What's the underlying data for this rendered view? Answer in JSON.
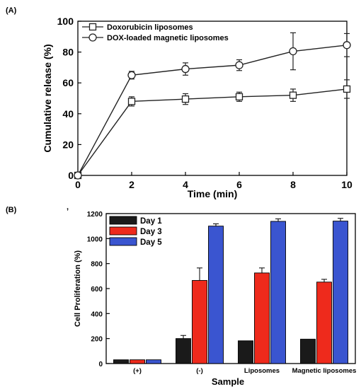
{
  "chart_data": [
    {
      "panel_label": "(A)",
      "type": "line",
      "xlabel": "Time (min)",
      "ylabel": "Cumulative release (%)",
      "xlim": [
        0,
        10
      ],
      "ylim": [
        0,
        100
      ],
      "xticks": [
        "0",
        "2",
        "4",
        "6",
        "8",
        "10"
      ],
      "yticks": [
        "0",
        "20",
        "40",
        "60",
        "80",
        "100"
      ],
      "legend_position": "top-left",
      "series": [
        {
          "name": "Doxorubicin liposomes",
          "marker": "square",
          "x": [
            0,
            2,
            4,
            6,
            8,
            10
          ],
          "y": [
            0,
            48,
            49.5,
            51,
            52,
            56
          ],
          "err": [
            0,
            3,
            3.5,
            3,
            4,
            6
          ]
        },
        {
          "name": "DOX-loaded magnetic liposomes",
          "marker": "circle",
          "x": [
            0,
            2,
            4,
            6,
            8,
            10
          ],
          "y": [
            0,
            65,
            69,
            71.5,
            80.5,
            84.5
          ],
          "err": [
            0,
            2.5,
            4,
            3.5,
            12,
            7.5
          ]
        }
      ]
    },
    {
      "panel_label": "(B)",
      "stray_mark": ",",
      "type": "bar",
      "xlabel": "Sample",
      "ylabel": "Cell Proliferation (%)",
      "ylim": [
        0,
        1200
      ],
      "yticks": [
        "0",
        "200",
        "400",
        "600",
        "800",
        "1000",
        "1200"
      ],
      "categories": [
        "(+)",
        "(-)",
        "Liposomes",
        "Magnetic liposomes"
      ],
      "legend_position": "top-left",
      "series": [
        {
          "name": "Day 1",
          "color": "#1a1a1a",
          "values": [
            30,
            200,
            182,
            195
          ],
          "err": [
            0,
            25,
            0,
            0
          ]
        },
        {
          "name": "Day 3",
          "color": "#ee2a1c",
          "values": [
            30,
            665,
            725,
            652
          ],
          "err": [
            0,
            100,
            40,
            22
          ]
        },
        {
          "name": "Day 5",
          "color": "#3a55d0",
          "values": [
            30,
            1100,
            1138,
            1140
          ],
          "err": [
            0,
            18,
            20,
            22
          ]
        }
      ]
    }
  ]
}
